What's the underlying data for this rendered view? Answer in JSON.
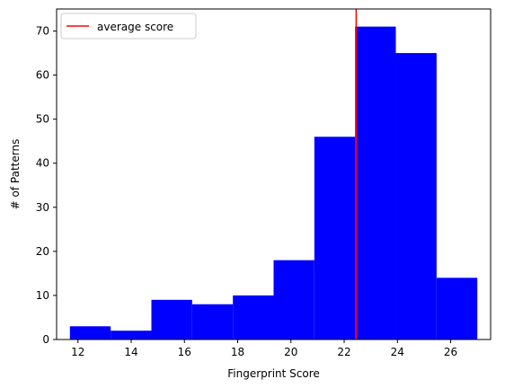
{
  "chart_data": {
    "type": "bar",
    "subtype": "histogram",
    "title": "",
    "xlabel": "Fingerprint Score",
    "ylabel": "# of Patterns",
    "xlim": [
      11.2,
      27.5
    ],
    "ylim": [
      0,
      75
    ],
    "xticks": [
      12,
      14,
      16,
      18,
      20,
      22,
      24,
      26
    ],
    "yticks": [
      0,
      10,
      20,
      30,
      40,
      50,
      60,
      70
    ],
    "bins": [
      {
        "x0": 11.7,
        "x1": 13.23,
        "count": 3
      },
      {
        "x0": 13.23,
        "x1": 14.76,
        "count": 2
      },
      {
        "x0": 14.76,
        "x1": 16.29,
        "count": 9
      },
      {
        "x0": 16.29,
        "x1": 17.82,
        "count": 8
      },
      {
        "x0": 17.82,
        "x1": 19.35,
        "count": 10
      },
      {
        "x0": 19.35,
        "x1": 20.88,
        "count": 18
      },
      {
        "x0": 20.88,
        "x1": 22.41,
        "count": 46
      },
      {
        "x0": 22.41,
        "x1": 23.94,
        "count": 71
      },
      {
        "x0": 23.94,
        "x1": 25.47,
        "count": 65
      },
      {
        "x0": 25.47,
        "x1": 27.0,
        "count": 14
      }
    ],
    "bar_color": "#0000ff",
    "average_line": {
      "value": 22.45,
      "color": "#ff0000",
      "label": "average score"
    },
    "legend": {
      "position": "top-left",
      "entries": [
        "average score"
      ]
    },
    "grid": false
  }
}
